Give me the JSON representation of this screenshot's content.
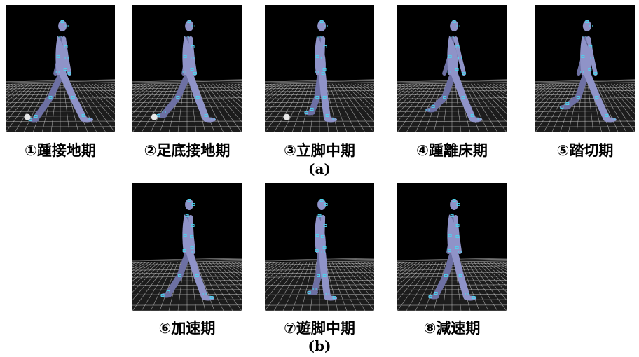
{
  "row_a": {
    "label": "(a)",
    "phases": [
      {
        "caption": "①踵接地期",
        "ball": true
      },
      {
        "caption": "②足底接地期",
        "ball": true
      },
      {
        "caption": "③立脚中期",
        "ball": true
      },
      {
        "caption": "④踵離床期",
        "ball": false
      },
      {
        "caption": "⑤踏切期",
        "ball": false
      }
    ]
  },
  "row_b": {
    "label": "(b)",
    "phases": [
      {
        "caption": "⑥加速期",
        "ball": false
      },
      {
        "caption": "⑦遊脚中期",
        "ball": false
      },
      {
        "caption": "⑧減速期",
        "ball": false
      }
    ]
  },
  "colors": {
    "panel_bg": "#000000",
    "grid": "#cfcfcf",
    "figure": "#8f93c8",
    "figure_shade": "#6d70a3",
    "marker": "#4ad8f0",
    "ball": "#e8e8e8"
  }
}
